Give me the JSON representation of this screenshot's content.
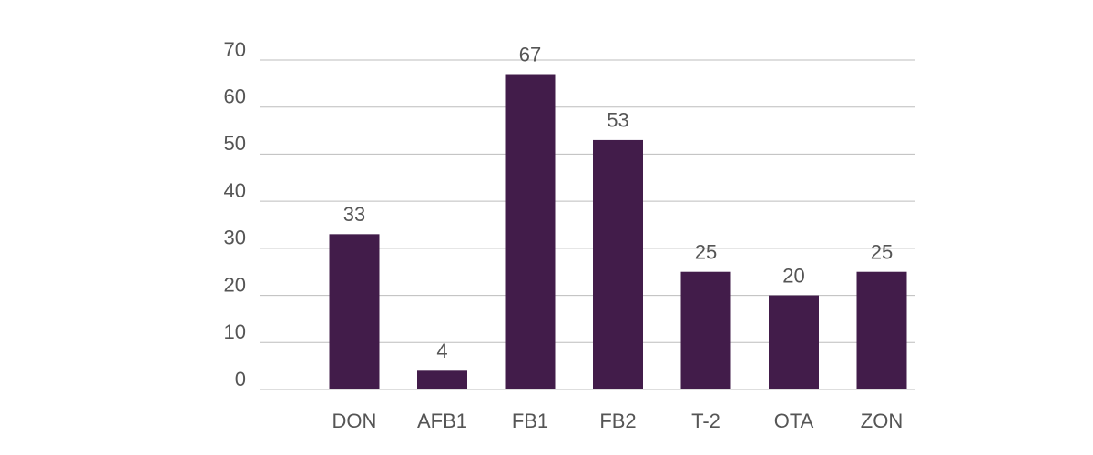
{
  "chart_data": {
    "type": "bar",
    "categories": [
      "DON",
      "AFB1",
      "FB1",
      "FB2",
      "T-2",
      "OTA",
      "ZON"
    ],
    "values": [
      33,
      4,
      67,
      53,
      25,
      20,
      25
    ],
    "color": "#421c4a",
    "ylim": [
      0,
      70
    ],
    "yticks": [
      0,
      10,
      20,
      30,
      40,
      50,
      60,
      70
    ],
    "grid": true
  }
}
